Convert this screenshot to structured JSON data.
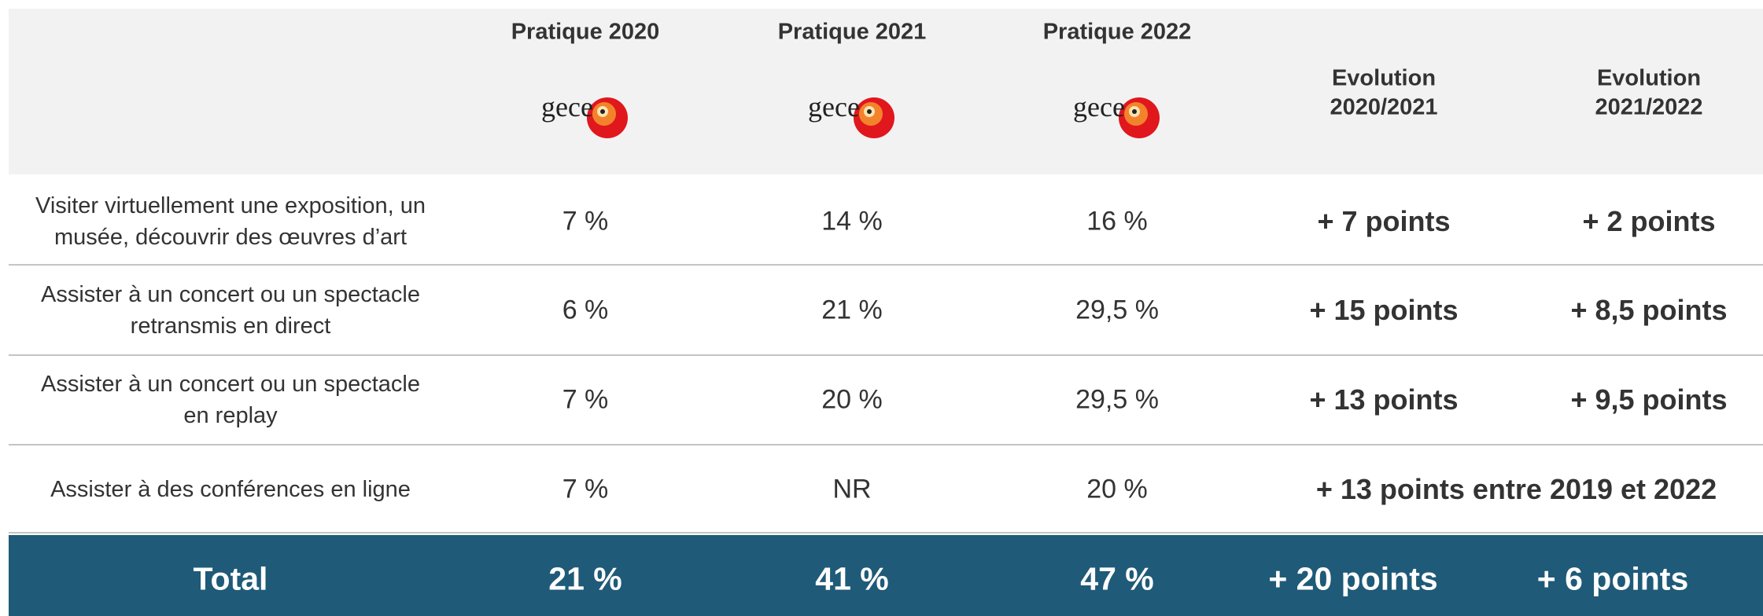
{
  "header": {
    "columns": [
      {
        "title": "Pratique 2020",
        "logo": "gece"
      },
      {
        "title": "Pratique 2021",
        "logo": "gece"
      },
      {
        "title": "Pratique 2022",
        "logo": "gece"
      },
      {
        "lines": [
          "Evolution",
          "2020/2021"
        ]
      },
      {
        "lines": [
          "Evolution",
          "2021/2022"
        ]
      }
    ]
  },
  "table": {
    "rows": [
      {
        "label": [
          "Visiter virtuellement une exposition, un",
          "musée, découvrir des œuvres d’art"
        ],
        "cells": [
          "7 %",
          "14 %",
          "16 %",
          "+ 7 points",
          "+ 2 points"
        ]
      },
      {
        "label": [
          "Assister à un concert ou un spectacle",
          "retransmis en direct"
        ],
        "cells": [
          "6 %",
          "21 %",
          "29,5 %",
          "+ 15 points",
          "+ 8,5 points"
        ]
      },
      {
        "label": [
          "Assister à un concert ou un spectacle",
          "en replay"
        ],
        "cells": [
          "7 %",
          "20 %",
          "29,5 %",
          "+ 13 points",
          "+ 9,5 points"
        ]
      },
      {
        "label": [
          "Assister à des conférences en ligne"
        ],
        "cells": [
          "7 %",
          "NR",
          "20 %",
          "+ 13 points entre 2019 et 2022"
        ]
      }
    ],
    "total": {
      "label": "Total",
      "cells": [
        "21 %",
        "41 %",
        "47 %",
        "+ 20 points",
        "+ 6 points"
      ]
    }
  }
}
